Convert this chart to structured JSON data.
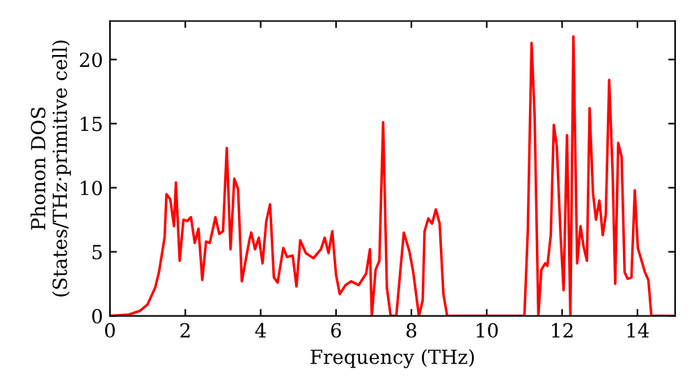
{
  "chart_data": {
    "type": "line",
    "xlabel": "Frequency (THz)",
    "ylabel": "Phonon DOS\n(States/THz·primitive cell)",
    "xlim": [
      0,
      15
    ],
    "ylim": [
      0,
      23
    ],
    "xticks": [
      0,
      2,
      4,
      6,
      8,
      10,
      12,
      14
    ],
    "yticks": [
      0,
      5,
      10,
      15,
      20
    ],
    "grid": false,
    "legend": false,
    "marker": "none",
    "line_style": "solid",
    "series": [
      {
        "color": "#ff0000",
        "x": [
          0,
          0.5,
          0.8,
          1.0,
          1.2,
          1.3,
          1.45,
          1.5,
          1.6,
          1.7,
          1.75,
          1.85,
          1.95,
          2.05,
          2.15,
          2.25,
          2.35,
          2.45,
          2.55,
          2.65,
          2.8,
          2.9,
          3.0,
          3.1,
          3.2,
          3.3,
          3.4,
          3.5,
          3.7,
          3.75,
          3.85,
          3.95,
          4.05,
          4.15,
          4.25,
          4.35,
          4.45,
          4.6,
          4.7,
          4.85,
          4.95,
          5.05,
          5.2,
          5.4,
          5.6,
          5.7,
          5.8,
          5.9,
          6.0,
          6.1,
          6.25,
          6.4,
          6.6,
          6.8,
          6.9,
          6.95,
          7.05,
          7.15,
          7.25,
          7.35,
          7.45,
          7.6,
          7.7,
          7.8,
          7.95,
          8.05,
          8.2,
          8.3,
          8.35,
          8.45,
          8.55,
          8.65,
          8.75,
          8.85,
          8.95,
          11.0,
          11.09,
          11.19,
          11.27,
          11.37,
          11.45,
          11.55,
          11.61,
          11.7,
          11.78,
          11.86,
          11.96,
          12.04,
          12.13,
          12.22,
          12.3,
          12.4,
          12.49,
          12.57,
          12.66,
          12.73,
          12.82,
          12.9,
          12.99,
          13.08,
          13.16,
          13.25,
          13.34,
          13.41,
          13.49,
          13.58,
          13.66,
          13.74,
          13.84,
          13.93,
          14.01,
          14.2,
          14.29,
          14.37,
          15
        ],
        "values": [
          0,
          0.1,
          0.4,
          0.9,
          2.2,
          3.4,
          6.1,
          9.5,
          9.1,
          7,
          10.4,
          4.3,
          7.5,
          7.4,
          7.7,
          5.7,
          6.8,
          2.8,
          5.8,
          5.7,
          7.7,
          6.4,
          6.6,
          13.1,
          5.2,
          10.7,
          9.9,
          2.7,
          5.9,
          6.5,
          5.2,
          6.1,
          4.1,
          7.4,
          8.7,
          3.0,
          2.6,
          5.3,
          4.6,
          4.7,
          2.3,
          5.9,
          4.9,
          4.5,
          5.2,
          6.1,
          4.9,
          6.6,
          3.2,
          1.7,
          2.4,
          2.7,
          2.4,
          3.3,
          5.2,
          0,
          3.6,
          4.3,
          15.1,
          2.2,
          0,
          0,
          3.3,
          6.5,
          5.0,
          3.4,
          0,
          1.2,
          6.6,
          7.6,
          7.2,
          8.3,
          7.2,
          1.7,
          0,
          0,
          6.6,
          21.3,
          15.7,
          0,
          3.6,
          4.1,
          3.9,
          6.3,
          14.9,
          13.2,
          6.3,
          2.0,
          14.1,
          0,
          21.8,
          4.1,
          7.0,
          5.4,
          4.3,
          16.2,
          9.6,
          7.5,
          9.0,
          6.3,
          7.9,
          18.4,
          11.3,
          2.5,
          13.5,
          12.4,
          3.4,
          2.9,
          3.0,
          9.8,
          5.3,
          3.4,
          2.8,
          0,
          0
        ]
      }
    ]
  }
}
